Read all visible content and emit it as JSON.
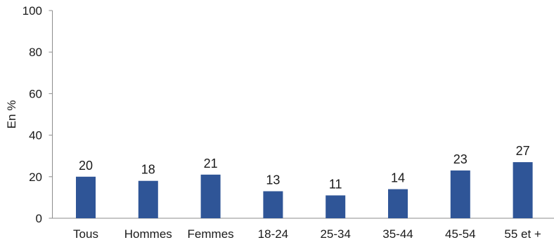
{
  "chart_data": {
    "type": "bar",
    "categories": [
      "Tous",
      "Hommes",
      "Femmes",
      "18-24",
      "25-34",
      "35-44",
      "45-54",
      "55 et +"
    ],
    "values": [
      20,
      18,
      21,
      13,
      11,
      14,
      23,
      27
    ],
    "data_labels": [
      "20",
      "18",
      "21",
      "13",
      "11",
      "14",
      "23",
      "27"
    ],
    "title": "",
    "xlabel": "",
    "ylabel": "En %",
    "ylim": [
      0,
      100
    ],
    "yticks": [
      0,
      20,
      40,
      60,
      80,
      100
    ],
    "grid": false,
    "bar_color": "#2f5597"
  }
}
